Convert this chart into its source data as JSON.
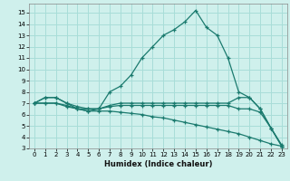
{
  "xlabel": "Humidex (Indice chaleur)",
  "bg_color": "#cff0ec",
  "grid_color": "#a8ddd8",
  "line_color": "#1a7a6e",
  "xlim": [
    -0.5,
    23.5
  ],
  "ylim": [
    3,
    15.8
  ],
  "xticks": [
    0,
    1,
    2,
    3,
    4,
    5,
    6,
    7,
    8,
    9,
    10,
    11,
    12,
    13,
    14,
    15,
    16,
    17,
    18,
    19,
    20,
    21,
    22,
    23
  ],
  "yticks": [
    3,
    4,
    5,
    6,
    7,
    8,
    9,
    10,
    11,
    12,
    13,
    14,
    15
  ],
  "series": [
    {
      "x": [
        0,
        1,
        2,
        3,
        4,
        5,
        6,
        7,
        8,
        9,
        10,
        11,
        12,
        13,
        14,
        15,
        16,
        17,
        18,
        19,
        20,
        21,
        22,
        23
      ],
      "y": [
        7.0,
        7.5,
        7.5,
        7.0,
        6.5,
        6.5,
        6.5,
        8.0,
        8.5,
        9.5,
        11.0,
        12.0,
        13.0,
        13.5,
        14.2,
        15.2,
        13.7,
        13.0,
        11.0,
        8.0,
        7.5,
        6.5,
        4.8,
        3.2
      ]
    },
    {
      "x": [
        0,
        1,
        2,
        3,
        4,
        5,
        6,
        7,
        8,
        9,
        10,
        11,
        12,
        13,
        14,
        15,
        16,
        17,
        18,
        19,
        20,
        21,
        22,
        23
      ],
      "y": [
        7.0,
        7.5,
        7.5,
        7.0,
        6.7,
        6.5,
        6.5,
        6.8,
        7.0,
        7.0,
        7.0,
        7.0,
        7.0,
        7.0,
        7.0,
        7.0,
        7.0,
        7.0,
        7.0,
        7.5,
        7.5,
        6.5,
        4.8,
        3.2
      ]
    },
    {
      "x": [
        0,
        1,
        2,
        3,
        4,
        5,
        6,
        7,
        8,
        9,
        10,
        11,
        12,
        13,
        14,
        15,
        16,
        17,
        18,
        19,
        20,
        21,
        22,
        23
      ],
      "y": [
        7.0,
        7.0,
        7.0,
        6.7,
        6.5,
        6.3,
        6.5,
        6.7,
        6.8,
        6.8,
        6.8,
        6.8,
        6.8,
        6.8,
        6.8,
        6.8,
        6.8,
        6.8,
        6.8,
        6.5,
        6.5,
        6.2,
        4.8,
        3.3
      ]
    },
    {
      "x": [
        0,
        1,
        2,
        3,
        4,
        5,
        6,
        7,
        8,
        9,
        10,
        11,
        12,
        13,
        14,
        15,
        16,
        17,
        18,
        19,
        20,
        21,
        22,
        23
      ],
      "y": [
        7.0,
        7.0,
        7.0,
        6.8,
        6.5,
        6.3,
        6.3,
        6.3,
        6.2,
        6.1,
        6.0,
        5.8,
        5.7,
        5.5,
        5.3,
        5.1,
        4.9,
        4.7,
        4.5,
        4.3,
        4.0,
        3.7,
        3.4,
        3.2
      ]
    }
  ]
}
